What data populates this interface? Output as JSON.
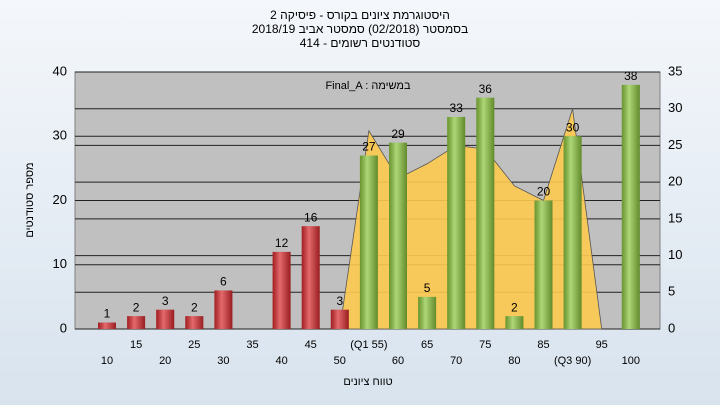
{
  "chart_data": {
    "type": "bar",
    "title": [
      "היסטוגרמת ציונים בקורס - פיסיקה 2",
      "בסמסטר (02/2018)  סמסטר אביב 2018/19",
      "414 - סטודנטים רשומים"
    ],
    "annotation": "Final_A : במשימה",
    "ylabel": "מספר סטודנטים",
    "xlabel": "טווח ציונים",
    "categories": [
      "10",
      "15",
      "20",
      "25",
      "30",
      "35",
      "40",
      "45",
      "50",
      "(Q1 55)",
      "60",
      "65",
      "70",
      "75",
      "80",
      "85",
      "(Q3 90)",
      "95",
      "100"
    ],
    "series": [
      {
        "values": [
          1,
          2,
          3,
          2,
          6,
          null,
          12,
          16,
          3,
          27,
          29,
          5,
          33,
          36,
          2,
          20,
          30,
          null,
          38
        ],
        "colors": [
          "#d92a2e",
          "#d92a2e",
          "#d92a2e",
          "#d92a2e",
          "#d92a2e",
          "#d92a2e",
          "#d92a2e",
          "#d92a2e",
          "#d92a2e",
          "#8cc63e",
          "#8cc63e",
          "#8cc63e",
          "#8cc63e",
          "#8cc63e",
          "#8cc63e",
          "#8cc63e",
          "#8cc63e",
          "#8cc63e",
          "#8cc63e"
        ]
      },
      {
        "type": "area",
        "axis": "y2",
        "color": "#fdc94f",
        "values": [
          null,
          null,
          null,
          null,
          null,
          null,
          null,
          null,
          0,
          27,
          20.5,
          22.5,
          25,
          24.5,
          19.5,
          17.5,
          30,
          0,
          null
        ]
      }
    ],
    "ylim": [
      0,
      40
    ],
    "yticks": [
      0,
      10,
      20,
      30,
      40
    ],
    "y2lim": [
      0,
      35
    ],
    "y2ticks": [
      0,
      5,
      10,
      15,
      20,
      25,
      30,
      35
    ],
    "grid": true
  }
}
